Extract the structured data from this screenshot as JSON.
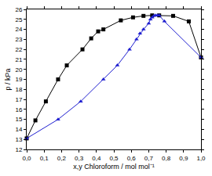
{
  "chart_data": {
    "type": "line",
    "x_label": "x,y Chloroform / mol mol⁻¹",
    "y_label": "p / kPa",
    "xlim": [
      0,
      1
    ],
    "ylim": [
      12,
      26
    ],
    "xticks": [
      {
        "value": 0,
        "label": "0,0"
      },
      {
        "value": 0.1,
        "label": "0,1"
      },
      {
        "value": 0.2,
        "label": "0,2"
      },
      {
        "value": 0.3,
        "label": "0,3"
      },
      {
        "value": 0.4,
        "label": "0,4"
      },
      {
        "value": 0.5,
        "label": "0,5"
      },
      {
        "value": 0.6,
        "label": "0,6"
      },
      {
        "value": 0.7,
        "label": "0,7"
      },
      {
        "value": 0.8,
        "label": "0,8"
      },
      {
        "value": 0.9,
        "label": "0,9"
      },
      {
        "value": 1,
        "label": "1,0"
      }
    ],
    "yticks": [
      12,
      13,
      14,
      15,
      16,
      17,
      18,
      19,
      20,
      21,
      22,
      23,
      24,
      25,
      26
    ],
    "grid": false,
    "series": [
      {
        "color": "#000000",
        "marker": "square",
        "line_style": "solid",
        "x": [
          0,
          0.05,
          0.11,
          0.18,
          0.23,
          0.32,
          0.37,
          0.41,
          0.44,
          0.54,
          0.61,
          0.67,
          0.72,
          0.76,
          0.84,
          0.93,
          1.0
        ],
        "values": [
          13.1,
          14.9,
          16.8,
          19.0,
          20.4,
          22.0,
          23.1,
          23.8,
          24.0,
          24.9,
          25.2,
          25.35,
          25.4,
          25.4,
          25.35,
          24.8,
          21.2
        ]
      },
      {
        "color": "#1f1fd0",
        "marker": "triangle",
        "line_style": "solid",
        "x": [
          0,
          0.18,
          0.31,
          0.44,
          0.52,
          0.59,
          0.63,
          0.65,
          0.67,
          0.7,
          0.71,
          0.72,
          0.73,
          0.74,
          0.75,
          0.76,
          0.79,
          1.0
        ],
        "values": [
          13.1,
          15.0,
          16.8,
          19.0,
          20.4,
          22.0,
          23.0,
          23.6,
          24.0,
          24.6,
          25.0,
          25.2,
          25.35,
          25.4,
          25.4,
          25.4,
          24.8,
          21.2
        ]
      }
    ]
  }
}
